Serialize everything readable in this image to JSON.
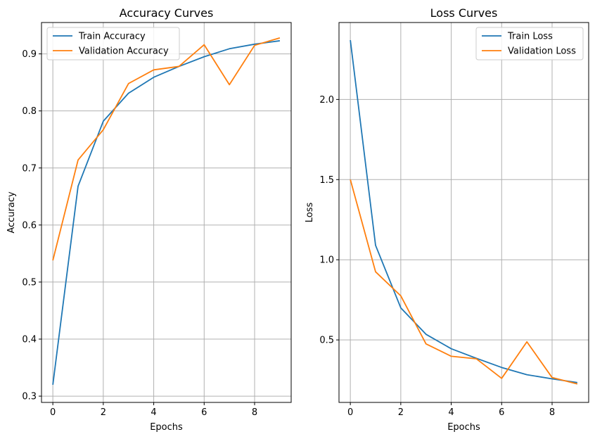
{
  "chart_data": [
    {
      "type": "line",
      "title": "Accuracy Curves",
      "xlabel": "Epochs",
      "ylabel": "Accuracy",
      "x": [
        0,
        1,
        2,
        3,
        4,
        5,
        6,
        7,
        8,
        9
      ],
      "xlim": [
        -0.45,
        9.45
      ],
      "ylim": [
        0.289,
        0.955
      ],
      "xticks": [
        0,
        2,
        4,
        6,
        8
      ],
      "yticks": [
        0.3,
        0.4,
        0.5,
        0.6,
        0.7,
        0.8,
        0.9
      ],
      "grid": true,
      "legend_position": "upper-left",
      "series": [
        {
          "name": "Train Accuracy",
          "color": "#1f77b4",
          "values": [
            0.32,
            0.668,
            0.782,
            0.831,
            0.859,
            0.878,
            0.895,
            0.909,
            0.917,
            0.923
          ]
        },
        {
          "name": "Validation Accuracy",
          "color": "#ff7f0e",
          "values": [
            0.538,
            0.714,
            0.767,
            0.848,
            0.872,
            0.878,
            0.916,
            0.846,
            0.915,
            0.928
          ]
        }
      ]
    },
    {
      "type": "line",
      "title": "Loss Curves",
      "xlabel": "Epochs",
      "ylabel": "Loss",
      "x": [
        0,
        1,
        2,
        3,
        4,
        5,
        6,
        7,
        8,
        9
      ],
      "xlim": [
        -0.45,
        9.45
      ],
      "ylim": [
        0.11,
        2.48
      ],
      "xticks": [
        0,
        2,
        4,
        6,
        8
      ],
      "yticks": [
        0.5,
        1.0,
        1.5,
        2.0
      ],
      "grid": true,
      "legend_position": "upper-right",
      "series": [
        {
          "name": "Train Loss",
          "color": "#1f77b4",
          "values": [
            2.37,
            1.09,
            0.7,
            0.535,
            0.445,
            0.385,
            0.328,
            0.283,
            0.257,
            0.234
          ]
        },
        {
          "name": "Validation Loss",
          "color": "#ff7f0e",
          "values": [
            1.5,
            0.925,
            0.775,
            0.475,
            0.398,
            0.382,
            0.26,
            0.488,
            0.265,
            0.225
          ]
        }
      ]
    }
  ]
}
